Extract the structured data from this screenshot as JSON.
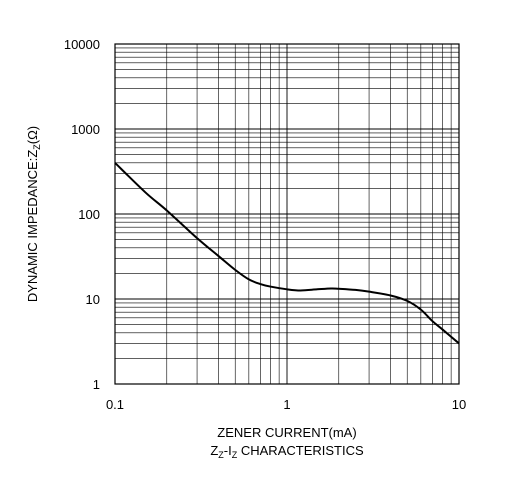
{
  "chart_data": {
    "type": "line",
    "x_scale": "log",
    "y_scale": "log",
    "xlim": [
      0.1,
      10
    ],
    "ylim": [
      1,
      10000
    ],
    "grid": true,
    "x_ticks": [
      "0.1",
      "1",
      "10"
    ],
    "y_ticks": [
      "1",
      "10",
      "100",
      "1000",
      "10000"
    ],
    "xlabel": "ZENER CURRENT(mA)",
    "ylabel": {
      "main": "DYNAMIC IMPEDANCE:Z",
      "sub": "Z",
      "unit": "(Ω)"
    },
    "caption": {
      "z1": "Z",
      "z1_sub": "Z",
      "dash": "-I",
      "z2_sub": "Z",
      "rest": " CHARACTERISTICS"
    },
    "series": [
      {
        "x": [
          0.1,
          0.15,
          0.2,
          0.3,
          0.4,
          0.5,
          0.6,
          0.7,
          0.8,
          1.0,
          1.2,
          1.5,
          1.8,
          2.0,
          2.5,
          3.0,
          4.0,
          5.0,
          6.0,
          7.0,
          8.0,
          10.0
        ],
        "y": [
          400,
          180,
          110,
          52,
          32,
          22,
          17,
          15,
          14,
          13,
          12.6,
          13,
          13.3,
          13.2,
          12.8,
          12.2,
          11,
          9.5,
          7.5,
          5.5,
          4.4,
          3
        ]
      }
    ],
    "color": "#000000"
  }
}
